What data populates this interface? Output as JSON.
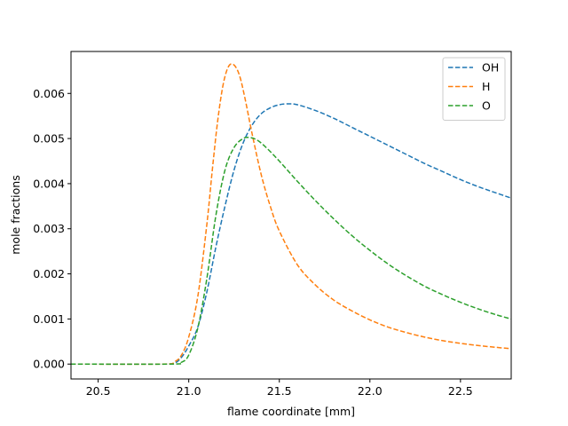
{
  "chart_data": {
    "type": "line",
    "title": "",
    "xlabel": "flame coordinate [mm]",
    "ylabel": "mole fractions",
    "xlim": [
      20.35,
      22.78
    ],
    "ylim": [
      -0.00033,
      0.00693
    ],
    "xticks": [
      20.5,
      21.0,
      21.5,
      22.0,
      22.5
    ],
    "xtick_labels": [
      "20.5",
      "21.0",
      "21.5",
      "22.0",
      "22.5"
    ],
    "yticks": [
      0.0,
      0.001,
      0.002,
      0.003,
      0.004,
      0.005,
      0.006
    ],
    "ytick_labels": [
      "0.000",
      "0.001",
      "0.002",
      "0.003",
      "0.004",
      "0.005",
      "0.006"
    ],
    "grid": false,
    "legend": "top-right",
    "series": [
      {
        "name": "OH",
        "color": "#1f77b4",
        "style": "dashed",
        "points": [
          [
            20.35,
            0.0
          ],
          [
            20.85,
            0.0
          ],
          [
            20.92,
            2e-05
          ],
          [
            20.96,
            0.00015
          ],
          [
            21.0,
            0.0004
          ],
          [
            21.05,
            0.00082
          ],
          [
            21.1,
            0.0016
          ],
          [
            21.15,
            0.0026
          ],
          [
            21.2,
            0.0035
          ],
          [
            21.25,
            0.0043
          ],
          [
            21.3,
            0.0049
          ],
          [
            21.35,
            0.0053
          ],
          [
            21.4,
            0.00555
          ],
          [
            21.45,
            0.00568
          ],
          [
            21.5,
            0.00575
          ],
          [
            21.55,
            0.00577
          ],
          [
            21.6,
            0.00575
          ],
          [
            21.7,
            0.00562
          ],
          [
            21.8,
            0.00545
          ],
          [
            21.9,
            0.00525
          ],
          [
            22.0,
            0.00505
          ],
          [
            22.1,
            0.00485
          ],
          [
            22.2,
            0.00465
          ],
          [
            22.3,
            0.00445
          ],
          [
            22.4,
            0.00427
          ],
          [
            22.5,
            0.00409
          ],
          [
            22.6,
            0.00393
          ],
          [
            22.7,
            0.00379
          ],
          [
            22.78,
            0.00368
          ]
        ]
      },
      {
        "name": "H",
        "color": "#ff7f0e",
        "style": "dashed",
        "points": [
          [
            20.35,
            0.0
          ],
          [
            20.85,
            0.0
          ],
          [
            20.92,
            5e-05
          ],
          [
            20.96,
            0.0002
          ],
          [
            21.0,
            0.0006
          ],
          [
            21.05,
            0.0015
          ],
          [
            21.1,
            0.0031
          ],
          [
            21.13,
            0.0043
          ],
          [
            21.16,
            0.0054
          ],
          [
            21.19,
            0.0062
          ],
          [
            21.22,
            0.0066
          ],
          [
            21.25,
            0.00663
          ],
          [
            21.28,
            0.0064
          ],
          [
            21.31,
            0.0059
          ],
          [
            21.35,
            0.0051
          ],
          [
            21.4,
            0.0042
          ],
          [
            21.45,
            0.0035
          ],
          [
            21.5,
            0.00295
          ],
          [
            21.6,
            0.0022
          ],
          [
            21.7,
            0.00175
          ],
          [
            21.8,
            0.00142
          ],
          [
            21.9,
            0.00118
          ],
          [
            22.0,
            0.00098
          ],
          [
            22.1,
            0.00082
          ],
          [
            22.2,
            0.0007
          ],
          [
            22.3,
            0.0006
          ],
          [
            22.4,
            0.00052
          ],
          [
            22.5,
            0.00046
          ],
          [
            22.6,
            0.00041
          ],
          [
            22.7,
            0.00037
          ],
          [
            22.78,
            0.00034
          ]
        ]
      },
      {
        "name": "O",
        "color": "#2ca02c",
        "style": "dashed",
        "points": [
          [
            20.35,
            0.0
          ],
          [
            20.9,
            0.0
          ],
          [
            20.96,
            4e-05
          ],
          [
            21.0,
            0.0002
          ],
          [
            21.05,
            0.0008
          ],
          [
            21.1,
            0.0019
          ],
          [
            21.15,
            0.0033
          ],
          [
            21.2,
            0.0043
          ],
          [
            21.25,
            0.0048
          ],
          [
            21.3,
            0.005
          ],
          [
            21.34,
            0.00502
          ],
          [
            21.38,
            0.00496
          ],
          [
            21.43,
            0.00479
          ],
          [
            21.5,
            0.0045
          ],
          [
            21.6,
            0.00405
          ],
          [
            21.7,
            0.00362
          ],
          [
            21.8,
            0.00322
          ],
          [
            21.9,
            0.00285
          ],
          [
            22.0,
            0.00252
          ],
          [
            22.1,
            0.00222
          ],
          [
            22.2,
            0.00196
          ],
          [
            22.3,
            0.00173
          ],
          [
            22.4,
            0.00154
          ],
          [
            22.5,
            0.00137
          ],
          [
            22.6,
            0.00122
          ],
          [
            22.7,
            0.00109
          ],
          [
            22.78,
            0.001
          ]
        ]
      }
    ]
  }
}
